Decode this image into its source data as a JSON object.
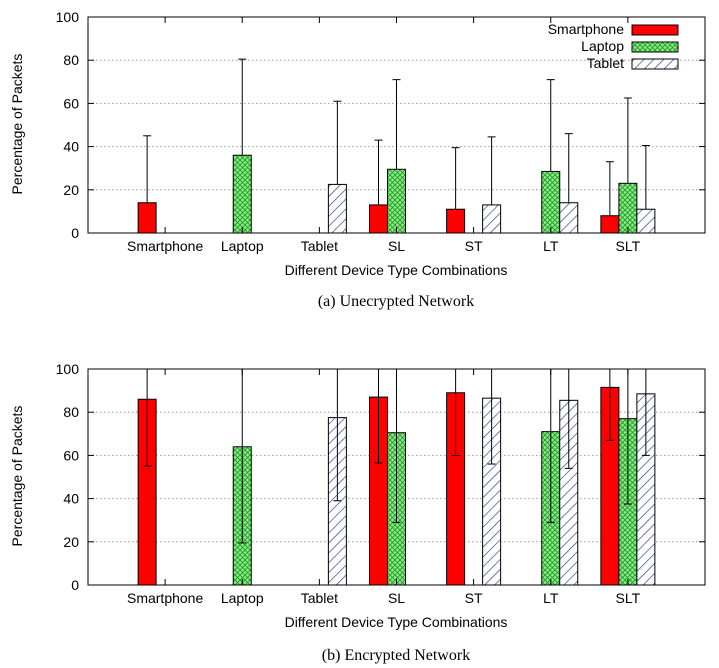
{
  "chart_data": [
    {
      "type": "bar",
      "caption": "(a) Unecrypted Network",
      "xlabel": "Different Device Type Combinations",
      "ylabel": "Percentage of Packets",
      "ylim": [
        0,
        100
      ],
      "yticks": [
        0,
        20,
        40,
        60,
        80,
        100
      ],
      "grid": true,
      "legend": "top-right",
      "categories": [
        "Smartphone",
        "Laptop",
        "Tablet",
        "SL",
        "ST",
        "LT",
        "SLT"
      ],
      "series": [
        {
          "name": "Smartphone",
          "values": [
            14,
            null,
            null,
            13,
            11,
            null,
            8
          ],
          "error_upper": [
            45,
            null,
            null,
            43,
            39.5,
            null,
            33
          ]
        },
        {
          "name": "Laptop",
          "values": [
            null,
            36,
            null,
            29.5,
            null,
            28.5,
            23
          ],
          "error_upper": [
            null,
            80.5,
            null,
            71,
            null,
            71,
            62.5
          ]
        },
        {
          "name": "Tablet",
          "values": [
            null,
            null,
            22.5,
            null,
            13,
            14,
            11
          ],
          "error_upper": [
            null,
            null,
            61,
            null,
            44.5,
            46,
            40.5
          ]
        }
      ]
    },
    {
      "type": "bar",
      "caption": "(b) Encrypted Network",
      "xlabel": "Different Device Type Combinations",
      "ylabel": "Percentage of Packets",
      "ylim": [
        0,
        100
      ],
      "yticks": [
        0,
        20,
        40,
        60,
        80,
        100
      ],
      "grid": true,
      "categories": [
        "Smartphone",
        "Laptop",
        "Tablet",
        "SL",
        "ST",
        "LT",
        "SLT"
      ],
      "series": [
        {
          "name": "Smartphone",
          "values": [
            86,
            null,
            null,
            87,
            89,
            null,
            91.5
          ],
          "error_lower": [
            55,
            null,
            null,
            56.5,
            60,
            null,
            67
          ]
        },
        {
          "name": "Laptop",
          "values": [
            null,
            64,
            null,
            70.5,
            null,
            71,
            77
          ],
          "error_lower": [
            null,
            19.5,
            null,
            29,
            null,
            29,
            37.5
          ]
        },
        {
          "name": "Tablet",
          "values": [
            null,
            null,
            77.5,
            null,
            86.5,
            85.5,
            88.5
          ],
          "error_lower": [
            null,
            null,
            39,
            null,
            56,
            54,
            60
          ]
        }
      ]
    }
  ],
  "colors": {
    "smartphone": "#ff0000",
    "laptop": "#33cc33",
    "tablet": "#1f3a93"
  }
}
